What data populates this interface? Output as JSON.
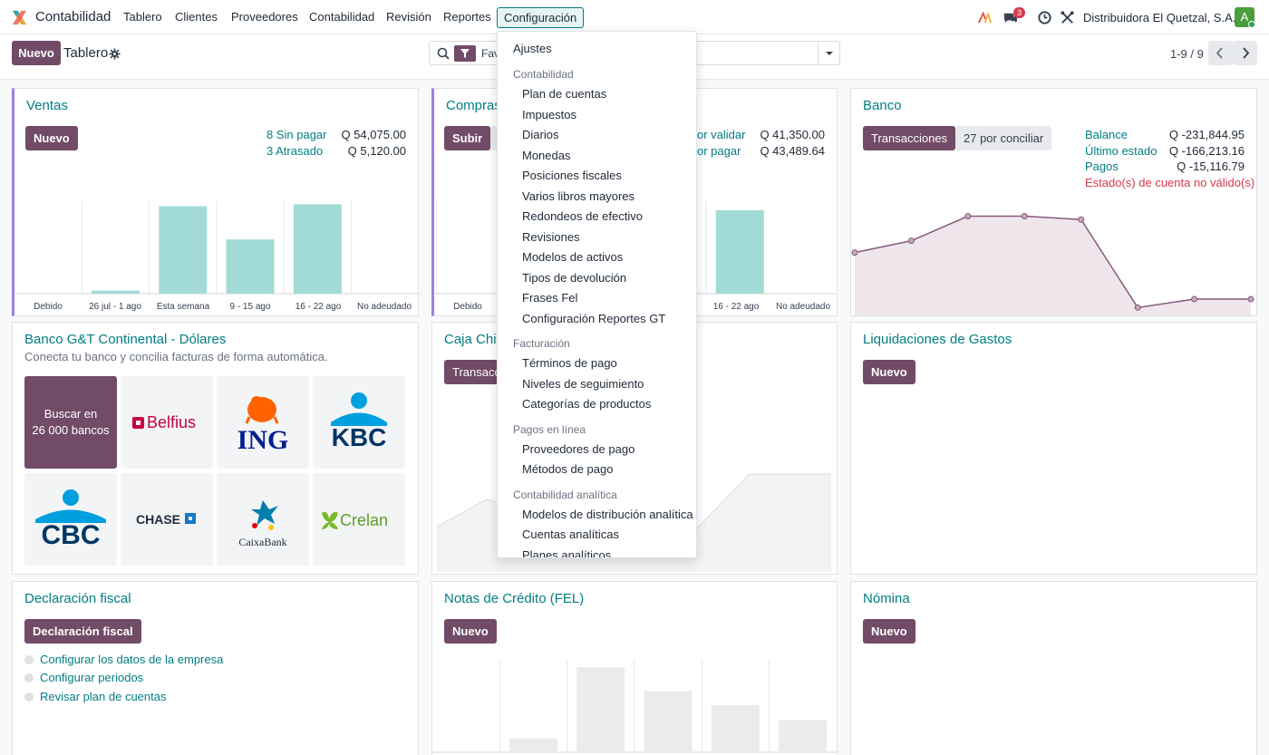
{
  "navbar": {
    "app_name": "Contabilidad",
    "menu": [
      "Tablero",
      "Clientes",
      "Proveedores",
      "Contabilidad",
      "Revisión",
      "Reportes",
      "Configuración"
    ],
    "active_menu": "Configuración",
    "chat_badge": "3",
    "company": "Distribuidora El Quetzal, S.A.",
    "avatar_letter": "A"
  },
  "control": {
    "new_label": "Nuevo",
    "title": "Tablero",
    "search_facet_text": "Fav",
    "pager": "1-9 / 9"
  },
  "config_menu": {
    "top_item": "Ajustes",
    "sections": [
      {
        "header": "Contabilidad",
        "items": [
          "Plan de cuentas",
          "Impuestos",
          "Diarios",
          "Monedas",
          "Posiciones fiscales",
          "Varios libros mayores",
          "Redondeos de efectivo",
          "Revisiones",
          "Modelos de activos",
          "Tipos de devolución",
          "Frases Fel",
          "Configuración Reportes GT"
        ]
      },
      {
        "header": "Facturación",
        "items": [
          "Términos de pago",
          "Niveles de seguimiento",
          "Categorías de productos"
        ]
      },
      {
        "header": "Pagos en línea",
        "items": [
          "Proveedores de pago",
          "Métodos de pago"
        ]
      },
      {
        "header": "Contabilidad analítica",
        "items": [
          "Modelos de distribución analítica",
          "Cuentas analíticas",
          "Planes analíticos"
        ]
      }
    ]
  },
  "cards": {
    "ventas": {
      "title": "Ventas",
      "button": "Nuevo",
      "stats": [
        {
          "label": "8 Sin pagar",
          "value": "Q 54,075.00"
        },
        {
          "label": "3 Atrasado",
          "value": "Q 5,120.00"
        }
      ]
    },
    "compras": {
      "title": "Compras",
      "button": "Subir",
      "stats": [
        {
          "label": "or validar",
          "value": "Q 41,350.00"
        },
        {
          "label": "or pagar",
          "value": "Q 43,489.64"
        }
      ],
      "visible_labels": [
        "Debido",
        "16 - 22 ago",
        "No adeudado"
      ]
    },
    "banco": {
      "title": "Banco",
      "buttons": [
        "Transacciones",
        "27 por conciliar"
      ],
      "stats": [
        {
          "label": "Balance",
          "value": "Q -231,844.95"
        },
        {
          "label": "Último estado",
          "value": "Q -166,213.16"
        },
        {
          "label": "Pagos",
          "value": "Q -15,116.79"
        }
      ],
      "warning": "Estado(s) de cuenta no válido(s)"
    },
    "banco_gt": {
      "title": "Banco G&T Continental - Dólares",
      "subtitle": "Conecta tu banco y concilia facturas de forma automática.",
      "search_tile": [
        "Buscar en",
        "26 000 bancos"
      ],
      "banks": [
        "Belfius",
        "ING",
        "KBC",
        "CBC",
        "CHASE",
        "CaixaBank",
        "Crelan"
      ]
    },
    "caja_chica": {
      "title": "Caja Chic",
      "button": "Transacc"
    },
    "liquidaciones": {
      "title": "Liquidaciones de Gastos",
      "button": "Nuevo"
    },
    "declaracion": {
      "title": "Declaración fiscal",
      "button": "Declaración fiscal",
      "todos": [
        "Configurar los datos de la empresa",
        "Configurar periodos",
        "Revisar plan de cuentas"
      ]
    },
    "notas_credito": {
      "title": "Notas de Crédito (FEL)",
      "button": "Nuevo"
    },
    "nomina": {
      "title": "Nómina",
      "button": "Nuevo"
    }
  },
  "colors": {
    "primary": "#714b67",
    "link": "#017e84",
    "bar": "#a2dbd5",
    "line": "#875a7b",
    "danger": "#d9384c"
  },
  "chart_data": [
    {
      "type": "bar",
      "categories": [
        "Debido",
        "26 jul - 1 ago",
        "Esta semana",
        "9 - 15 ago",
        "16 - 22 ago",
        "No adeudado"
      ],
      "values": [
        0,
        0.5,
        14.2,
        8.8,
        14.5,
        0
      ]
    },
    {
      "type": "line",
      "values": [
        -8.0,
        -6.6,
        -3.7,
        -3.7,
        -4.1,
        -14.5,
        -13.5,
        -13.5
      ]
    },
    {
      "type": "bar",
      "values": [
        0,
        0,
        0,
        0,
        0,
        0,
        0,
        15.5
      ]
    },
    {
      "type": "bar",
      "values": [
        0,
        1.5,
        9.2,
        6.6,
        5.1,
        3.5
      ]
    }
  ]
}
